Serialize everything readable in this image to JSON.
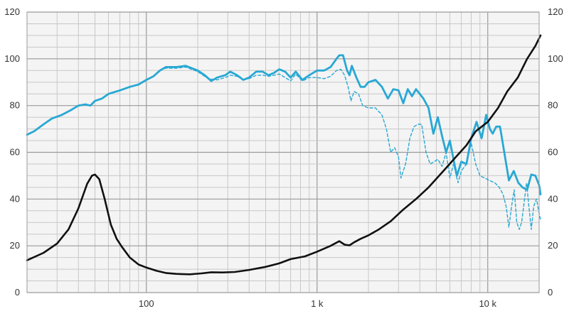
{
  "chart_data": {
    "type": "line",
    "title": "",
    "xlabel": "",
    "ylabel_left": "",
    "ylabel_right": "",
    "x_scale": "log",
    "xlim": [
      20,
      20000
    ],
    "ylim": [
      0,
      120
    ],
    "grid": true,
    "legend": "none",
    "x_tick_labels": [
      {
        "value": 100,
        "label": "100"
      },
      {
        "value": 1000,
        "label": "1 k"
      },
      {
        "value": 10000,
        "label": "10 k"
      }
    ],
    "y_ticks": [
      0,
      20,
      40,
      60,
      80,
      100,
      120
    ],
    "colors": {
      "response": "#29a8d4",
      "impedance": "#111111",
      "grid_major": "#9a9a9a",
      "grid_minor": "#c8c8c8",
      "background": "#f4f4f4"
    },
    "series": [
      {
        "key": "on_axis_response",
        "style": "solid",
        "points": [
          [
            20,
            67.5
          ],
          [
            22,
            69
          ],
          [
            25,
            72
          ],
          [
            28,
            74.5
          ],
          [
            32,
            76
          ],
          [
            36,
            78
          ],
          [
            40,
            80
          ],
          [
            44,
            80.5
          ],
          [
            47,
            80
          ],
          [
            50,
            82
          ],
          [
            55,
            83
          ],
          [
            60,
            85
          ],
          [
            70,
            86.5
          ],
          [
            80,
            88
          ],
          [
            90,
            89
          ],
          [
            100,
            91
          ],
          [
            110,
            92.5
          ],
          [
            120,
            95
          ],
          [
            130,
            96.5
          ],
          [
            150,
            96.5
          ],
          [
            170,
            97
          ],
          [
            200,
            95
          ],
          [
            220,
            93
          ],
          [
            240,
            90.5
          ],
          [
            260,
            92
          ],
          [
            290,
            93
          ],
          [
            310,
            94.5
          ],
          [
            340,
            93
          ],
          [
            370,
            91
          ],
          [
            400,
            92
          ],
          [
            440,
            94.5
          ],
          [
            480,
            94.5
          ],
          [
            520,
            93
          ],
          [
            560,
            94
          ],
          [
            600,
            95.5
          ],
          [
            650,
            94.5
          ],
          [
            700,
            92
          ],
          [
            750,
            94.5
          ],
          [
            820,
            91
          ],
          [
            900,
            93
          ],
          [
            1000,
            95
          ],
          [
            1100,
            95
          ],
          [
            1200,
            96.5
          ],
          [
            1300,
            100
          ],
          [
            1350,
            101.5
          ],
          [
            1420,
            101.5
          ],
          [
            1500,
            95
          ],
          [
            1550,
            93
          ],
          [
            1600,
            97
          ],
          [
            1700,
            92
          ],
          [
            1800,
            88
          ],
          [
            1900,
            88
          ],
          [
            2000,
            90
          ],
          [
            2200,
            91
          ],
          [
            2400,
            88
          ],
          [
            2600,
            83
          ],
          [
            2800,
            87
          ],
          [
            3000,
            86.5
          ],
          [
            3200,
            81
          ],
          [
            3400,
            87
          ],
          [
            3600,
            84
          ],
          [
            3800,
            87
          ],
          [
            4200,
            83
          ],
          [
            4500,
            79
          ],
          [
            4800,
            68
          ],
          [
            5100,
            75
          ],
          [
            5400,
            67
          ],
          [
            5700,
            60
          ],
          [
            6000,
            65
          ],
          [
            6300,
            57
          ],
          [
            6600,
            50
          ],
          [
            7000,
            56
          ],
          [
            7500,
            55
          ],
          [
            8000,
            66
          ],
          [
            8600,
            73
          ],
          [
            9200,
            66
          ],
          [
            9800,
            76
          ],
          [
            10300,
            70
          ],
          [
            10700,
            68
          ],
          [
            11200,
            71
          ],
          [
            11800,
            71
          ],
          [
            12500,
            60
          ],
          [
            13300,
            48
          ],
          [
            14200,
            52
          ],
          [
            15100,
            47
          ],
          [
            16000,
            45
          ],
          [
            17000,
            44
          ],
          [
            18000,
            50.5
          ],
          [
            19000,
            50
          ],
          [
            20000,
            46
          ],
          [
            21000,
            42
          ]
        ]
      },
      {
        "key": "off_axis_response",
        "style": "dashed",
        "points": [
          [
            120,
            95
          ],
          [
            130,
            96
          ],
          [
            150,
            96
          ],
          [
            170,
            96.5
          ],
          [
            200,
            94.5
          ],
          [
            230,
            91.5
          ],
          [
            260,
            91
          ],
          [
            290,
            92
          ],
          [
            310,
            93
          ],
          [
            340,
            92.5
          ],
          [
            370,
            91
          ],
          [
            400,
            91.5
          ],
          [
            440,
            93
          ],
          [
            480,
            93
          ],
          [
            520,
            92.5
          ],
          [
            560,
            93
          ],
          [
            600,
            93.5
          ],
          [
            650,
            92
          ],
          [
            700,
            90.5
          ],
          [
            750,
            93.5
          ],
          [
            820,
            90.5
          ],
          [
            900,
            92
          ],
          [
            1000,
            92
          ],
          [
            1100,
            91.5
          ],
          [
            1200,
            92.5
          ],
          [
            1300,
            95
          ],
          [
            1380,
            95.5
          ],
          [
            1450,
            93
          ],
          [
            1520,
            88
          ],
          [
            1580,
            82
          ],
          [
            1650,
            86
          ],
          [
            1750,
            85
          ],
          [
            1850,
            80
          ],
          [
            2000,
            79
          ],
          [
            2200,
            79
          ],
          [
            2400,
            76
          ],
          [
            2550,
            70
          ],
          [
            2700,
            60
          ],
          [
            2850,
            62
          ],
          [
            3000,
            58
          ],
          [
            3100,
            49
          ],
          [
            3300,
            55
          ],
          [
            3500,
            66
          ],
          [
            3700,
            71
          ],
          [
            3900,
            72
          ],
          [
            4100,
            72
          ],
          [
            4350,
            60
          ],
          [
            4600,
            55
          ],
          [
            4850,
            56
          ],
          [
            5100,
            57
          ],
          [
            5400,
            54
          ],
          [
            5700,
            60
          ],
          [
            6000,
            49
          ],
          [
            6300,
            55
          ],
          [
            6700,
            47
          ],
          [
            7000,
            52
          ],
          [
            7500,
            55
          ],
          [
            8000,
            64
          ],
          [
            8500,
            55
          ],
          [
            9000,
            50
          ],
          [
            9600,
            49
          ],
          [
            10200,
            48
          ],
          [
            11000,
            47
          ],
          [
            11700,
            45
          ],
          [
            12300,
            42
          ],
          [
            12800,
            37
          ],
          [
            13300,
            28
          ],
          [
            13800,
            37
          ],
          [
            14300,
            44
          ],
          [
            14800,
            30
          ],
          [
            15300,
            27
          ],
          [
            15800,
            30
          ],
          [
            16300,
            38
          ],
          [
            16900,
            47
          ],
          [
            17400,
            37
          ],
          [
            18000,
            27
          ],
          [
            18600,
            37
          ],
          [
            19300,
            40
          ],
          [
            20000,
            34
          ],
          [
            21000,
            31
          ]
        ]
      },
      {
        "key": "impedance",
        "style": "solid",
        "points": [
          [
            20,
            13.8
          ],
          [
            25,
            17
          ],
          [
            30,
            21
          ],
          [
            35,
            27
          ],
          [
            40,
            36
          ],
          [
            45,
            46.5
          ],
          [
            48,
            50
          ],
          [
            50,
            50.5
          ],
          [
            53,
            48.5
          ],
          [
            57,
            40
          ],
          [
            62,
            29
          ],
          [
            67,
            23
          ],
          [
            72,
            19.5
          ],
          [
            80,
            15
          ],
          [
            90,
            12
          ],
          [
            100,
            10.7
          ],
          [
            115,
            9.3
          ],
          [
            130,
            8.4
          ],
          [
            150,
            8.0
          ],
          [
            180,
            7.8
          ],
          [
            210,
            8.2
          ],
          [
            240,
            8.7
          ],
          [
            280,
            8.6
          ],
          [
            330,
            8.8
          ],
          [
            400,
            9.7
          ],
          [
            500,
            11
          ],
          [
            600,
            12.5
          ],
          [
            700,
            14.3
          ],
          [
            850,
            15.5
          ],
          [
            1000,
            17.5
          ],
          [
            1200,
            20
          ],
          [
            1350,
            22
          ],
          [
            1450,
            20.5
          ],
          [
            1550,
            20.2
          ],
          [
            1650,
            21.5
          ],
          [
            1800,
            23
          ],
          [
            2000,
            24.5
          ],
          [
            2300,
            27
          ],
          [
            2700,
            30.5
          ],
          [
            3200,
            35.5
          ],
          [
            3800,
            40
          ],
          [
            4500,
            45
          ],
          [
            5500,
            52
          ],
          [
            6500,
            58
          ],
          [
            7500,
            63
          ],
          [
            8500,
            69
          ],
          [
            10000,
            73
          ],
          [
            11500,
            79
          ],
          [
            13000,
            86
          ],
          [
            15000,
            92
          ],
          [
            17000,
            100
          ],
          [
            19000,
            105.5
          ],
          [
            21000,
            110
          ]
        ]
      }
    ]
  }
}
